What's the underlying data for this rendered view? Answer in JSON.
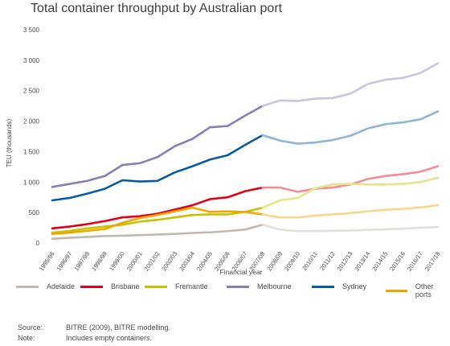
{
  "title": "Total container throughput by Australian port",
  "chart_data": {
    "type": "line",
    "title": "Total container throughput by Australian port",
    "xlabel": "Financial year",
    "ylabel": "TEU (thousands)",
    "ylim": [
      0,
      3500
    ],
    "yticks": [
      0,
      500,
      1000,
      1500,
      2000,
      2500,
      3000,
      3500
    ],
    "ytick_labels": [
      "0",
      "500",
      "1 000",
      "1 500",
      "2 000",
      "2 500",
      "3 000",
      "3 500"
    ],
    "categories": [
      "1995/96",
      "1996/97",
      "1997/98",
      "1998/99",
      "1999/00",
      "2000/01",
      "2001/02",
      "2002/03",
      "2003/04",
      "2004/05",
      "2005/06",
      "2006/07",
      "2007/08",
      "2008/09",
      "2009/10",
      "2010/11",
      "2011/12",
      "2012/13",
      "2013/14",
      "2014/15",
      "2015/16",
      "2016/17",
      "2017/18"
    ],
    "actual_through": "2007/08",
    "grid": false,
    "legend_position": "bottom",
    "series": [
      {
        "name": "Adelaide",
        "color": "#c1b8ad",
        "values": [
          70,
          85,
          100,
          115,
          120,
          130,
          140,
          150,
          165,
          175,
          195,
          220,
          300,
          220,
          195,
          195,
          200,
          205,
          215,
          225,
          235,
          250,
          265
        ]
      },
      {
        "name": "Brisbane",
        "color": "#e2001a",
        "values": [
          240,
          270,
          310,
          360,
          420,
          440,
          480,
          550,
          620,
          720,
          750,
          850,
          910,
          910,
          840,
          890,
          910,
          960,
          1050,
          1100,
          1130,
          1170,
          1260
        ]
      },
      {
        "name": "Fremantle",
        "color": "#c4c400",
        "values": [
          170,
          200,
          240,
          270,
          300,
          350,
          380,
          420,
          460,
          470,
          470,
          510,
          580,
          700,
          740,
          900,
          960,
          970,
          960,
          960,
          970,
          1000,
          1070
        ]
      },
      {
        "name": "Melbourne",
        "color": "#8480b8",
        "values": [
          920,
          970,
          1020,
          1100,
          1280,
          1310,
          1410,
          1590,
          1710,
          1900,
          1920,
          2090,
          2250,
          2340,
          2330,
          2370,
          2380,
          2450,
          2610,
          2680,
          2710,
          2790,
          2950
        ]
      },
      {
        "name": "Sydney",
        "color": "#0a5aa3",
        "values": [
          700,
          740,
          810,
          890,
          1030,
          1010,
          1020,
          1160,
          1260,
          1370,
          1440,
          1610,
          1770,
          1680,
          1630,
          1650,
          1690,
          1760,
          1880,
          1950,
          1980,
          2030,
          2160
        ]
      },
      {
        "name": "Other ports",
        "color": "#f0a600",
        "values": [
          150,
          170,
          200,
          230,
          330,
          410,
          460,
          520,
          580,
          510,
          520,
          510,
          470,
          420,
          420,
          450,
          470,
          490,
          520,
          545,
          560,
          585,
          620
        ]
      }
    ],
    "notes": {
      "source_label": "Source:",
      "source_text": "BITRE (2009), BITRE modelling.",
      "note_label": "Note:",
      "note_text": "Includes empty containers."
    }
  }
}
